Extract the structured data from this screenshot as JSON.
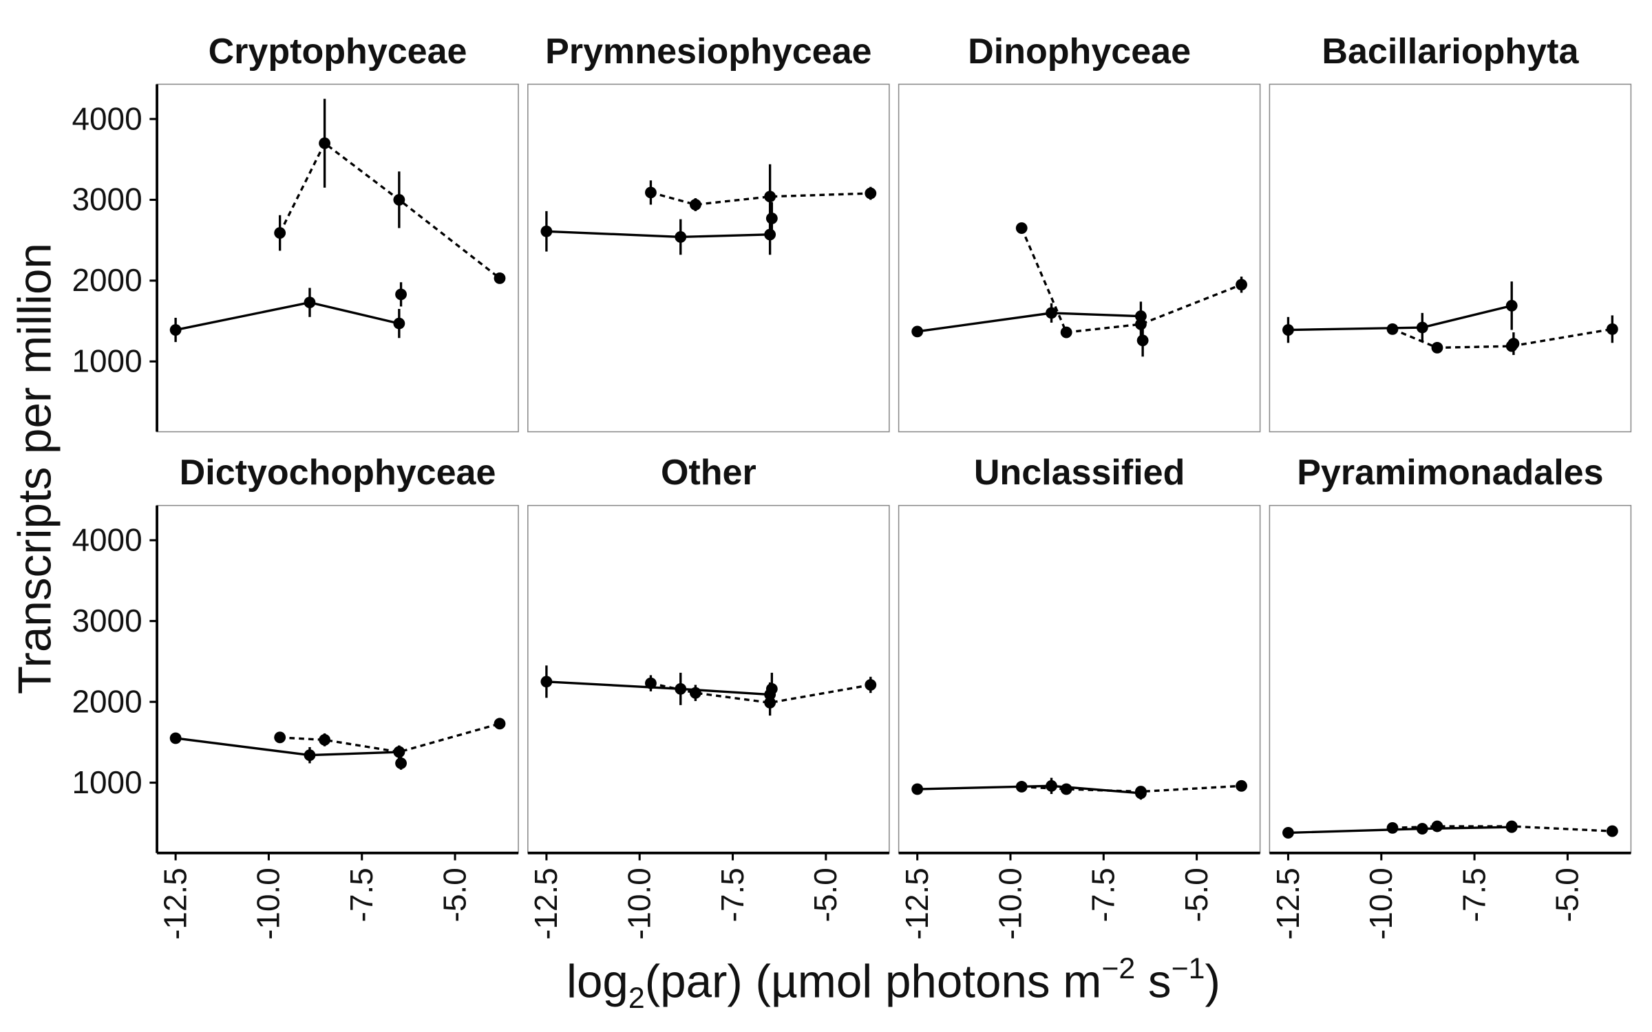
{
  "chart_data": {
    "type": "line",
    "facet_layout": "2 rows x 4 columns",
    "xlabel_prefix": "log",
    "xlabel_sub": "2",
    "xlabel_mid": "(par) (µmol photons m",
    "xlabel_sup1": "−2",
    "xlabel_mid2": " s",
    "xlabel_sup2": "−1",
    "xlabel_end": ")",
    "ylabel": "Transcripts per million",
    "xlim": [
      -13.0,
      -3.3
    ],
    "ylim": [
      130,
      4430
    ],
    "xticks": [
      -12.5,
      -10.0,
      -7.5,
      -5.0
    ],
    "xtick_labels": [
      "-12.5",
      "-10.0",
      "-7.5",
      "-5.0"
    ],
    "yticks": [
      1000,
      2000,
      3000,
      4000
    ],
    "ytick_labels": [
      "1000",
      "2000",
      "3000",
      "4000"
    ],
    "grid": false,
    "line_styles": [
      "solid",
      "dashed"
    ],
    "panels": [
      {
        "title": "Cryptophyceae",
        "series": [
          {
            "style": "solid",
            "x": [
              -12.5,
              -8.9,
              -6.5
            ],
            "y": [
              1390,
              1730,
              1470
            ],
            "err": [
              150,
              180,
              180
            ]
          },
          {
            "style": "dashed",
            "x": [
              -9.7,
              -8.5,
              -6.5,
              -3.8
            ],
            "y": [
              2590,
              3700,
              3000,
              2030
            ],
            "err": [
              220,
              550,
              350,
              0
            ]
          }
        ],
        "extra_points": [
          {
            "x": -6.45,
            "y": 1830,
            "err": 150
          }
        ]
      },
      {
        "title": "Prymnesiophyceae",
        "series": [
          {
            "style": "solid",
            "x": [
              -12.5,
              -8.9,
              -6.5
            ],
            "y": [
              2610,
              2540,
              2570
            ],
            "err": [
              250,
              220,
              250
            ]
          },
          {
            "style": "dashed",
            "x": [
              -9.7,
              -8.5,
              -6.5,
              -3.8
            ],
            "y": [
              3090,
              2940,
              3040,
              3080
            ],
            "err": [
              150,
              80,
              400,
              80
            ]
          }
        ],
        "extra_points": [
          {
            "x": -6.45,
            "y": 2770,
            "err": 200
          }
        ]
      },
      {
        "title": "Dinophyceae",
        "series": [
          {
            "style": "solid",
            "x": [
              -12.5,
              -8.9,
              -6.5
            ],
            "y": [
              1370,
              1600,
              1560
            ],
            "err": [
              40,
              120,
              180
            ]
          },
          {
            "style": "dashed",
            "x": [
              -9.7,
              -8.5,
              -6.5,
              -3.8
            ],
            "y": [
              2650,
              1360,
              1460,
              1950
            ],
            "err": [
              40,
              40,
              160,
              100
            ]
          }
        ],
        "extra_points": [
          {
            "x": -6.45,
            "y": 1260,
            "err": 200
          }
        ]
      },
      {
        "title": "Bacillariophyta",
        "series": [
          {
            "style": "solid",
            "x": [
              -12.5,
              -8.9,
              -6.5
            ],
            "y": [
              1390,
              1420,
              1690
            ],
            "err": [
              160,
              180,
              300
            ]
          },
          {
            "style": "dashed",
            "x": [
              -9.7,
              -8.5,
              -6.5,
              -3.8
            ],
            "y": [
              1400,
              1170,
              1190,
              1400
            ],
            "err": [
              40,
              60,
              60,
              170
            ]
          }
        ],
        "extra_points": [
          {
            "x": -6.45,
            "y": 1220,
            "err": 140
          }
        ]
      },
      {
        "title": "Dictyochophyceae",
        "series": [
          {
            "style": "solid",
            "x": [
              -12.5,
              -8.9,
              -6.5
            ],
            "y": [
              1550,
              1340,
              1380
            ],
            "err": [
              40,
              100,
              80
            ]
          },
          {
            "style": "dashed",
            "x": [
              -9.7,
              -8.5,
              -6.5,
              -3.8
            ],
            "y": [
              1560,
              1530,
              1380,
              1730
            ],
            "err": [
              40,
              80,
              80,
              50
            ]
          }
        ],
        "extra_points": [
          {
            "x": -6.45,
            "y": 1240,
            "err": 80
          }
        ]
      },
      {
        "title": "Other",
        "series": [
          {
            "style": "solid",
            "x": [
              -12.5,
              -8.9,
              -6.5
            ],
            "y": [
              2250,
              2160,
              2090
            ],
            "err": [
              200,
              200,
              150
            ]
          },
          {
            "style": "dashed",
            "x": [
              -9.7,
              -8.5,
              -6.5,
              -3.8
            ],
            "y": [
              2230,
              2110,
              1990,
              2210
            ],
            "err": [
              100,
              100,
              160,
              100
            ]
          }
        ],
        "extra_points": [
          {
            "x": -6.45,
            "y": 2160,
            "err": 200
          }
        ]
      },
      {
        "title": "Unclassified",
        "series": [
          {
            "style": "solid",
            "x": [
              -12.5,
              -8.9,
              -6.5
            ],
            "y": [
              920,
              960,
              870
            ],
            "err": [
              40,
              100,
              80
            ]
          },
          {
            "style": "dashed",
            "x": [
              -9.7,
              -8.5,
              -6.5,
              -3.8
            ],
            "y": [
              950,
              920,
              890,
              960
            ],
            "err": [
              40,
              40,
              60,
              40
            ]
          }
        ],
        "extra_points": []
      },
      {
        "title": "Pyramimonadales",
        "series": [
          {
            "style": "solid",
            "x": [
              -12.5,
              -8.9,
              -6.5
            ],
            "y": [
              380,
              430,
              450
            ],
            "err": [
              30,
              40,
              40
            ]
          },
          {
            "style": "dashed",
            "x": [
              -9.7,
              -8.5,
              -6.5,
              -3.8
            ],
            "y": [
              440,
              460,
              460,
              400
            ],
            "err": [
              30,
              30,
              40,
              30
            ]
          }
        ],
        "extra_points": []
      }
    ]
  }
}
